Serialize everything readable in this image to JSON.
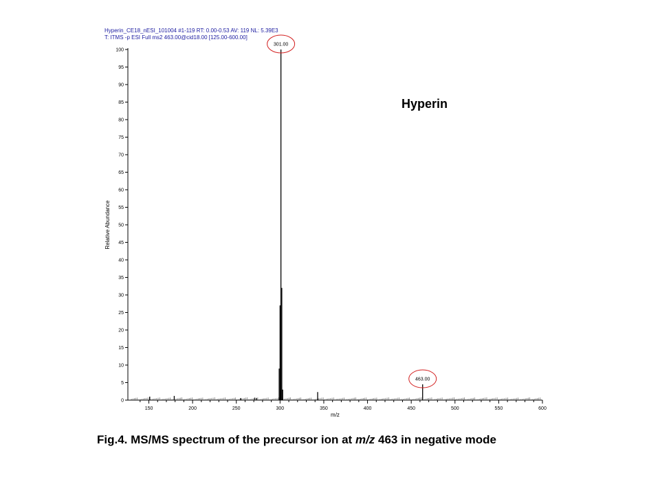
{
  "header": {
    "line1": "Hyperin_CE18_nESI_101004 #1-119 RT: 0.00-0.53 AV: 119 NL: 5.39E3",
    "line2": "T: ITMS -p ESI Full ms2 463.00@cid18.00 [125.00-600.00]"
  },
  "compound_label": "Hyperin",
  "caption": {
    "prefix": "Fig.4. MS/MS spectrum of the precursor ion at ",
    "italic": "m/z",
    "suffix": " 463 in negative mode"
  },
  "colors": {
    "highlight_circle": "#d21c1c",
    "header_text": "#1a1aa0",
    "axis": "#000000"
  },
  "chart_data": {
    "type": "bar",
    "xlabel": "m/z",
    "ylabel": "Relative Abundance",
    "xlim": [
      126,
      600
    ],
    "ylim": [
      0,
      100
    ],
    "xticks": [
      150,
      200,
      250,
      300,
      350,
      400,
      450,
      500,
      550,
      600
    ],
    "yticks": [
      0,
      5,
      10,
      15,
      20,
      25,
      30,
      35,
      40,
      45,
      50,
      55,
      60,
      65,
      70,
      75,
      80,
      85,
      90,
      95,
      100
    ],
    "peaks": [
      {
        "mz": 151,
        "intensity": 1
      },
      {
        "mz": 179,
        "intensity": 1.2
      },
      {
        "mz": 255,
        "intensity": 0.6
      },
      {
        "mz": 271,
        "intensity": 0.7
      },
      {
        "mz": 273,
        "intensity": 0.6
      },
      {
        "mz": 299,
        "intensity": 9
      },
      {
        "mz": 300,
        "intensity": 27
      },
      {
        "mz": 301,
        "intensity": 100
      },
      {
        "mz": 302,
        "intensity": 32
      },
      {
        "mz": 303,
        "intensity": 3
      },
      {
        "mz": 343,
        "intensity": 2.3
      },
      {
        "mz": 463,
        "intensity": 4.5
      }
    ],
    "labeled_peaks": [
      {
        "mz": 301,
        "intensity": 100,
        "label": "301.00"
      },
      {
        "mz": 463,
        "intensity": 4.5,
        "label": "463.00"
      }
    ],
    "grid": false
  }
}
